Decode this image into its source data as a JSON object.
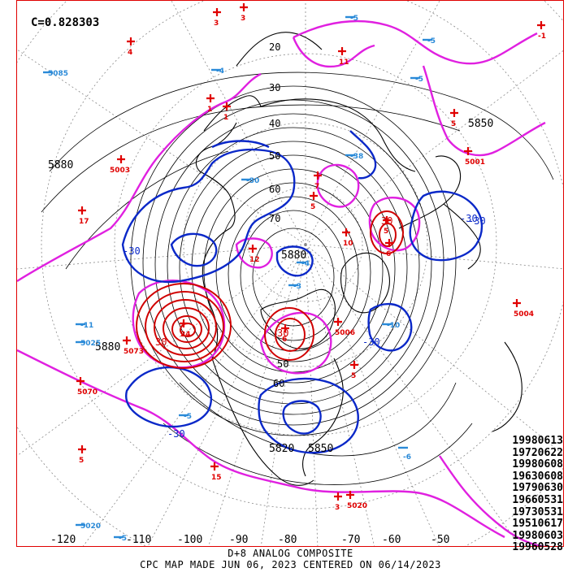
{
  "header": {
    "correlation": "C=0.828303"
  },
  "footer": {
    "line1": "D+8 ANALOG COMPOSITE",
    "line2": "CPC MAP MADE JUN 06, 2023 CENTERED ON 06/14/2023"
  },
  "analog_dates": [
    "19980613",
    "19720622",
    "19980608",
    "19630608",
    "19790630",
    "19660531",
    "19730531",
    "19510617",
    "19980603",
    "19960528"
  ],
  "longitude_labels": [
    "-120",
    "-110",
    "-100",
    "-90",
    "-80",
    "-70",
    "-60",
    "-50"
  ],
  "height_labels": [
    "5880",
    "5880",
    "5850",
    "5820",
    "5850",
    "5880"
  ],
  "anomaly_labels": [
    "-30",
    "-30",
    "-30",
    "-30",
    "-30",
    "30",
    "30",
    "30",
    "20",
    "30",
    "40",
    "50",
    "60",
    "70",
    "50",
    "60"
  ],
  "station_values": {
    "positive": [
      "3",
      "3",
      "4",
      "11",
      "1",
      "5003",
      "5001",
      "17",
      "7",
      "1",
      "5",
      "5",
      "12",
      "5",
      "10",
      "6",
      "24",
      "5",
      "5006",
      "5004",
      "6",
      "5070",
      "5",
      "5073",
      "15",
      "5020",
      "3",
      "-1"
    ],
    "negative": [
      "-5",
      "-5",
      "-4",
      "-5",
      "-30",
      "-38",
      "-10",
      "-11",
      "-3",
      "-4",
      "5085",
      "5025",
      "5020",
      "-6",
      "-5",
      "-5"
    ]
  },
  "colors": {
    "positive_marker": "#e00000",
    "negative_marker": "#2a8ad8",
    "negative_contour": "#0a28c8",
    "positive_contour": "#d00000",
    "zero_contour": "#e020e0",
    "height_contour": "#000000",
    "frame": "#e00000"
  }
}
